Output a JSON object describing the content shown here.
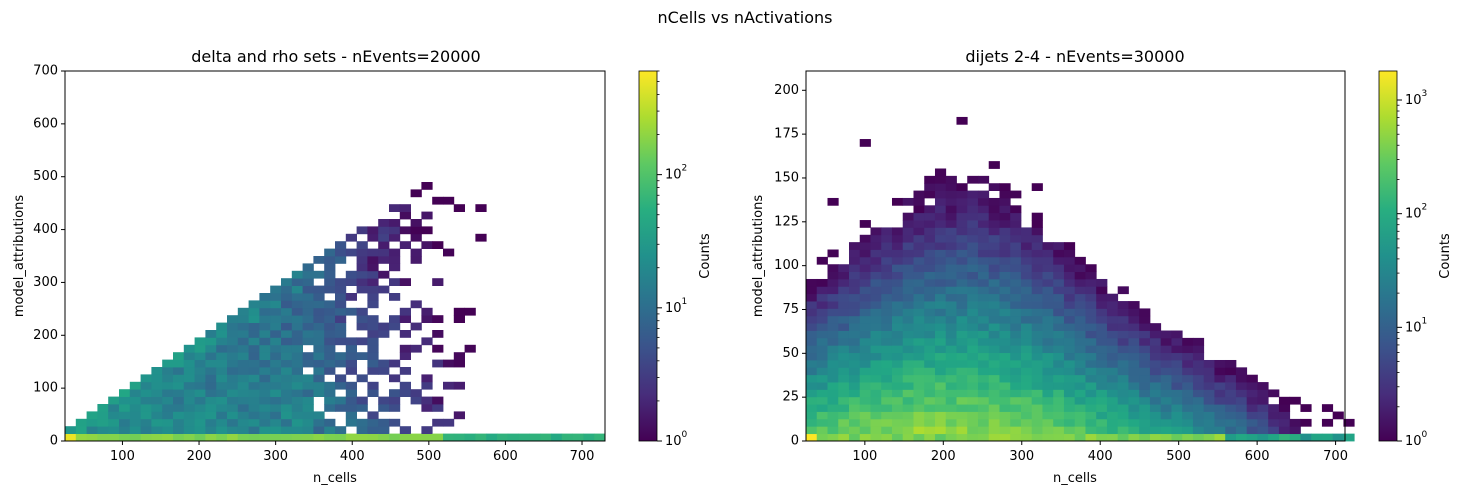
{
  "figure": {
    "suptitle": "nCells vs nActivations"
  },
  "chart_data": [
    {
      "type": "heatmap",
      "title": "delta and rho sets - nEvents=20000",
      "xlabel": "n_cells",
      "ylabel": "model_attributions",
      "xlim": [
        25,
        730
      ],
      "ylim": [
        0,
        700
      ],
      "xticks": [
        100,
        200,
        300,
        400,
        500,
        600,
        700
      ],
      "yticks": [
        0,
        100,
        200,
        300,
        400,
        500,
        600,
        700
      ],
      "bin_width_x": 14.1,
      "bin_height_y": 14.0,
      "colorbar": {
        "label": "Counts",
        "scale": "log",
        "colormap": "viridis",
        "min": 1,
        "max": 600,
        "ticks": [
          1,
          10,
          100
        ],
        "tick_labels": [
          "10^0",
          "10^1",
          "10^2"
        ]
      },
      "grid": false
    },
    {
      "type": "heatmap",
      "title": "dijets 2-4 - nEvents=30000",
      "xlabel": "n_cells",
      "ylabel": "model_attributions",
      "xlim": [
        25,
        712
      ],
      "ylim": [
        0,
        211
      ],
      "xticks": [
        100,
        200,
        300,
        400,
        500,
        600,
        700
      ],
      "yticks": [
        0,
        25,
        50,
        75,
        100,
        125,
        150,
        175,
        200
      ],
      "bin_width_x": 13.7,
      "bin_height_y": 4.2,
      "colorbar": {
        "label": "Counts",
        "scale": "log",
        "colormap": "viridis",
        "min": 1,
        "max": 1800,
        "ticks": [
          1,
          10,
          100,
          1000
        ],
        "tick_labels": [
          "10^0",
          "10^1",
          "10^2",
          "10^3"
        ]
      },
      "grid": false
    }
  ]
}
